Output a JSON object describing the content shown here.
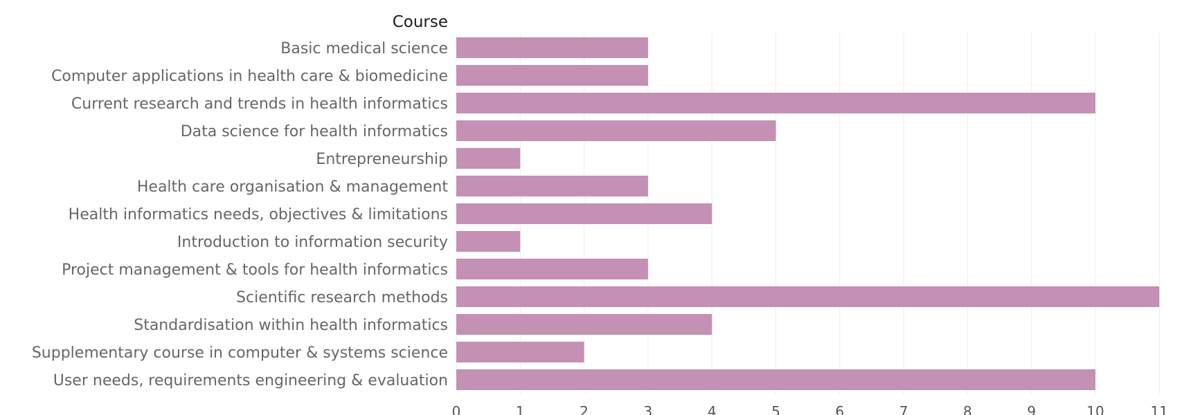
{
  "chart_data": {
    "type": "bar",
    "orientation": "horizontal",
    "row_header": "Course",
    "categories": [
      "Basic medical science",
      "Computer applications in health care & biomedicine",
      "Current research and trends in health informatics",
      "Data science for health informatics",
      "Entrepreneurship",
      "Health care organisation & management",
      "Health informatics needs, objectives & limitations",
      "Introduction to information security",
      "Project management & tools for health informatics",
      "Scientific research methods",
      "Standardisation within health informatics",
      "Supplementary course in computer & systems science",
      "User needs, requirements engineering & evaluation"
    ],
    "values": [
      3,
      3,
      10,
      5,
      1,
      3,
      4,
      1,
      3,
      11,
      4,
      2,
      10
    ],
    "xlim": [
      0,
      11
    ],
    "x_ticks": [
      0,
      1,
      2,
      3,
      4,
      5,
      6,
      7,
      8,
      9,
      10,
      11
    ],
    "grid": true,
    "bar_color": "#c490b4"
  }
}
